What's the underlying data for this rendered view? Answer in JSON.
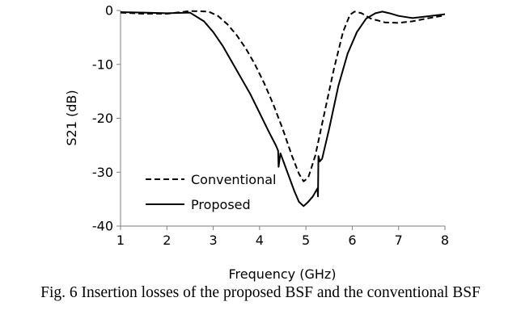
{
  "caption": "Fig. 6 Insertion losses of the proposed BSF and the conventional BSF",
  "chart_data": {
    "type": "line",
    "title": "",
    "xlabel": "Frequency (GHz)",
    "ylabel": "S21 (dB)",
    "xlim": [
      1,
      8
    ],
    "ylim": [
      -40,
      0
    ],
    "xticks": [
      "1",
      "2",
      "3",
      "4",
      "5",
      "6",
      "7",
      "8"
    ],
    "yticks": [
      "0",
      "-10",
      "-20",
      "-30",
      "-40"
    ],
    "grid": false,
    "legend_position": "bottom-left",
    "series": [
      {
        "name": "Conventional",
        "style": "dashed",
        "color": "#000000",
        "x": [
          1.0,
          1.5,
          2.0,
          2.5,
          2.9,
          3.1,
          3.3,
          3.5,
          3.7,
          3.9,
          4.1,
          4.3,
          4.5,
          4.7,
          4.85,
          4.95,
          5.05,
          5.2,
          5.4,
          5.6,
          5.8,
          5.95,
          6.05,
          6.2,
          6.4,
          6.7,
          7.0,
          7.3,
          7.6,
          8.0
        ],
        "y": [
          -0.4,
          -0.6,
          -0.6,
          -0.1,
          -0.2,
          -1.0,
          -2.5,
          -4.5,
          -7.0,
          -10.0,
          -13.5,
          -17.5,
          -22.0,
          -27.0,
          -30.3,
          -31.7,
          -31.0,
          -27.0,
          -19.0,
          -11.0,
          -4.0,
          -0.8,
          -0.2,
          -0.5,
          -1.5,
          -2.2,
          -2.3,
          -2.0,
          -1.5,
          -0.9
        ]
      },
      {
        "name": "Proposed",
        "style": "solid",
        "color": "#000000",
        "x": [
          1.0,
          1.5,
          2.0,
          2.5,
          2.8,
          3.0,
          3.2,
          3.4,
          3.6,
          3.8,
          4.0,
          4.2,
          4.35,
          4.4,
          4.41,
          4.45,
          4.6,
          4.75,
          4.85,
          4.95,
          5.05,
          5.15,
          5.25,
          5.26,
          5.27,
          5.3,
          5.35,
          5.5,
          5.7,
          5.9,
          6.1,
          6.3,
          6.5,
          6.65,
          6.8,
          7.0,
          7.3,
          7.6,
          8.0
        ],
        "y": [
          -0.3,
          -0.4,
          -0.5,
          -0.4,
          -2.0,
          -4.0,
          -6.5,
          -9.5,
          -12.5,
          -15.5,
          -19.0,
          -22.5,
          -25.0,
          -26.0,
          -29.0,
          -26.5,
          -30.0,
          -33.5,
          -35.5,
          -36.3,
          -35.5,
          -34.5,
          -33.0,
          -34.5,
          -27.0,
          -28.0,
          -27.5,
          -22.0,
          -14.0,
          -8.0,
          -4.0,
          -1.5,
          -0.5,
          -0.2,
          -0.5,
          -1.0,
          -1.4,
          -1.1,
          -0.7
        ]
      }
    ]
  }
}
